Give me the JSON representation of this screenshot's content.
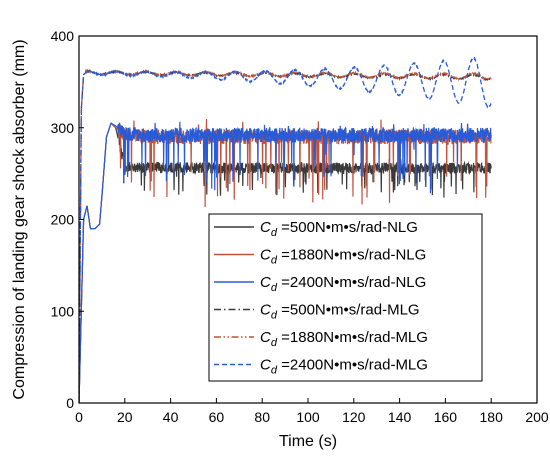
{
  "chart_data": {
    "type": "line",
    "xlabel": "Time (s)",
    "ylabel": "Compression of landing gear shock absorber (mm)",
    "xlim": [
      0,
      200
    ],
    "ylim": [
      0,
      400
    ],
    "xticks": [
      0,
      20,
      40,
      60,
      80,
      100,
      120,
      140,
      160,
      180,
      200
    ],
    "yticks": [
      0,
      100,
      200,
      300,
      400
    ],
    "grid": false,
    "legend_position": "bottom-right",
    "series": [
      {
        "name": "Cd =500N•m•s/rad-NLG",
        "legend_prefix": "C",
        "legend_sub": "d",
        "legend_suffix": " =500N•m•s/rad-NLG",
        "color": "#3a3a3a",
        "dash": "solid",
        "base_x": [
          0,
          2,
          3.5,
          5,
          7,
          9,
          10,
          12,
          14,
          16,
          20,
          30,
          60,
          100,
          140,
          180
        ],
        "base_y": [
          0,
          200,
          215,
          190,
          190,
          195,
          225,
          290,
          305,
          300,
          258,
          257,
          256,
          256,
          256,
          256
        ],
        "spike_depth": 22,
        "noise_amp": 6
      },
      {
        "name": "Cd =1880N•m•s/rad-NLG",
        "legend_prefix": "C",
        "legend_sub": "d",
        "legend_suffix": " =1880N•m•s/rad-NLG",
        "color": "#c0533c",
        "dash": "solid",
        "base_x": [
          0,
          2,
          3.5,
          5,
          7,
          9,
          10,
          12,
          14,
          16,
          20,
          30,
          60,
          100,
          140,
          180
        ],
        "base_y": [
          0,
          200,
          215,
          190,
          190,
          195,
          225,
          290,
          305,
          300,
          292,
          290,
          290,
          290,
          290,
          290
        ],
        "spike_depth": 55,
        "noise_amp": 8
      },
      {
        "name": "Cd =2400N•m•s/rad-NLG",
        "legend_prefix": "C",
        "legend_sub": "d",
        "legend_suffix": " =2400N•m•s/rad-NLG",
        "color": "#2a5bd7",
        "dash": "solid",
        "base_x": [
          0,
          2,
          3.5,
          5,
          7,
          9,
          10,
          12,
          14,
          16,
          20,
          30,
          60,
          100,
          140,
          180
        ],
        "base_y": [
          0,
          200,
          215,
          190,
          190,
          195,
          225,
          290,
          305,
          302,
          293,
          292,
          292,
          292,
          292,
          292
        ],
        "spike_depth": 45,
        "noise_amp": 8
      },
      {
        "name": "Cd =500N•m•s/rad-MLG",
        "legend_prefix": "C",
        "legend_sub": "d",
        "legend_suffix": " =500N•m•s/rad-MLG",
        "color": "#3a3a3a",
        "dash": "dashdot",
        "base_x": [
          0,
          1,
          2,
          3,
          180
        ],
        "base_y": [
          0,
          320,
          358,
          360,
          355
        ],
        "osc_amp_start": 1.5,
        "osc_amp_end": 2.5,
        "osc_period": 13
      },
      {
        "name": "Cd =1880N•m•s/rad-MLG",
        "legend_prefix": "C",
        "legend_sub": "d",
        "legend_suffix": " =1880N•m•s/rad-MLG",
        "color": "#c0533c",
        "dash": "dashdotdot",
        "base_x": [
          0,
          1,
          2,
          3,
          180
        ],
        "base_y": [
          0,
          320,
          358,
          360,
          356
        ],
        "osc_amp_start": 2,
        "osc_amp_end": 3,
        "osc_period": 13
      },
      {
        "name": "Cd =2400N•m•s/rad-MLG",
        "legend_prefix": "C",
        "legend_sub": "d",
        "legend_suffix": " =2400N•m•s/rad-MLG",
        "color": "#2a5bd7",
        "dash": "dashed",
        "base_x": [
          0,
          1,
          2,
          3,
          180
        ],
        "base_y": [
          0,
          320,
          358,
          360,
          350
        ],
        "osc_amp_start": 2,
        "osc_amp_end": 28,
        "osc_period": 13
      }
    ]
  }
}
